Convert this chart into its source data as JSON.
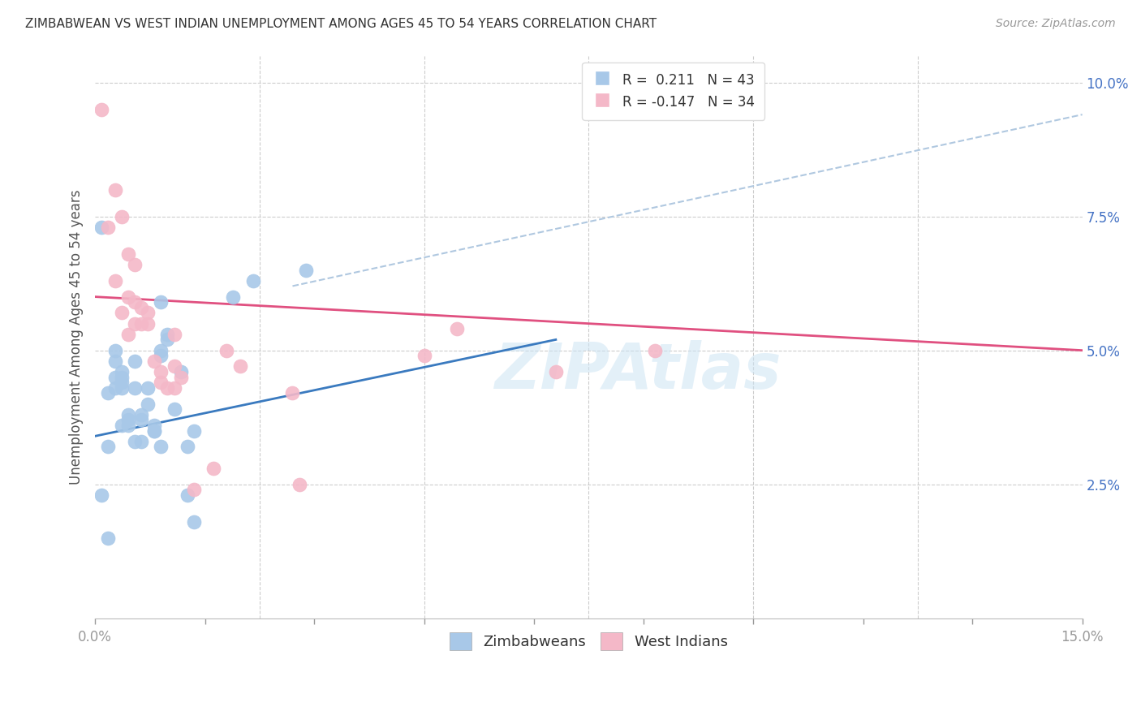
{
  "title": "ZIMBABWEAN VS WEST INDIAN UNEMPLOYMENT AMONG AGES 45 TO 54 YEARS CORRELATION CHART",
  "source": "Source: ZipAtlas.com",
  "ylabel": "Unemployment Among Ages 45 to 54 years",
  "xlim": [
    0.0,
    0.15
  ],
  "ylim": [
    0.0,
    0.105
  ],
  "x_tick_positions": [
    0.0,
    0.0167,
    0.0333,
    0.05,
    0.0667,
    0.0833,
    0.1,
    0.1167,
    0.1333,
    0.15
  ],
  "x_tick_labels": [
    "0.0%",
    "",
    "",
    "",
    "",
    "",
    "",
    "",
    "",
    "15.0%"
  ],
  "y_tick_positions": [
    0.025,
    0.05,
    0.075,
    0.1
  ],
  "y_tick_labels": [
    "2.5%",
    "5.0%",
    "7.5%",
    "10.0%"
  ],
  "blue_scatter_color": "#a8c8e8",
  "pink_scatter_color": "#f4b8c8",
  "blue_line_color": "#3a7abf",
  "pink_line_color": "#e05080",
  "dashed_line_color": "#b0c8e0",
  "background_color": "#ffffff",
  "grid_color": "#cccccc",
  "zim_x": [
    0.001,
    0.002,
    0.002,
    0.003,
    0.003,
    0.003,
    0.003,
    0.004,
    0.004,
    0.004,
    0.004,
    0.004,
    0.005,
    0.005,
    0.005,
    0.006,
    0.006,
    0.006,
    0.007,
    0.007,
    0.007,
    0.008,
    0.008,
    0.009,
    0.009,
    0.009,
    0.01,
    0.01,
    0.01,
    0.011,
    0.011,
    0.012,
    0.013,
    0.014,
    0.014,
    0.015,
    0.021,
    0.024,
    0.032,
    0.001,
    0.002,
    0.01,
    0.015
  ],
  "zim_y": [
    0.023,
    0.042,
    0.015,
    0.043,
    0.045,
    0.048,
    0.05,
    0.036,
    0.043,
    0.044,
    0.045,
    0.046,
    0.036,
    0.037,
    0.038,
    0.033,
    0.043,
    0.048,
    0.033,
    0.037,
    0.038,
    0.04,
    0.043,
    0.035,
    0.035,
    0.036,
    0.049,
    0.05,
    0.059,
    0.052,
    0.053,
    0.039,
    0.046,
    0.023,
    0.032,
    0.035,
    0.06,
    0.063,
    0.065,
    0.073,
    0.032,
    0.032,
    0.018
  ],
  "wi_x": [
    0.001,
    0.002,
    0.003,
    0.003,
    0.004,
    0.004,
    0.005,
    0.005,
    0.005,
    0.006,
    0.006,
    0.006,
    0.007,
    0.007,
    0.008,
    0.008,
    0.009,
    0.01,
    0.01,
    0.011,
    0.012,
    0.012,
    0.012,
    0.013,
    0.015,
    0.018,
    0.02,
    0.022,
    0.03,
    0.031,
    0.05,
    0.055,
    0.07,
    0.085
  ],
  "wi_y": [
    0.095,
    0.073,
    0.08,
    0.063,
    0.075,
    0.057,
    0.068,
    0.06,
    0.053,
    0.055,
    0.059,
    0.066,
    0.055,
    0.058,
    0.055,
    0.057,
    0.048,
    0.044,
    0.046,
    0.043,
    0.053,
    0.043,
    0.047,
    0.045,
    0.024,
    0.028,
    0.05,
    0.047,
    0.042,
    0.025,
    0.049,
    0.054,
    0.046,
    0.05
  ],
  "blue_line_x": [
    0.0,
    0.07
  ],
  "blue_line_y": [
    0.034,
    0.052
  ],
  "pink_line_x": [
    0.0,
    0.15
  ],
  "pink_line_y": [
    0.06,
    0.05
  ],
  "dashed_line_x": [
    0.03,
    0.15
  ],
  "dashed_line_y": [
    0.062,
    0.094
  ]
}
